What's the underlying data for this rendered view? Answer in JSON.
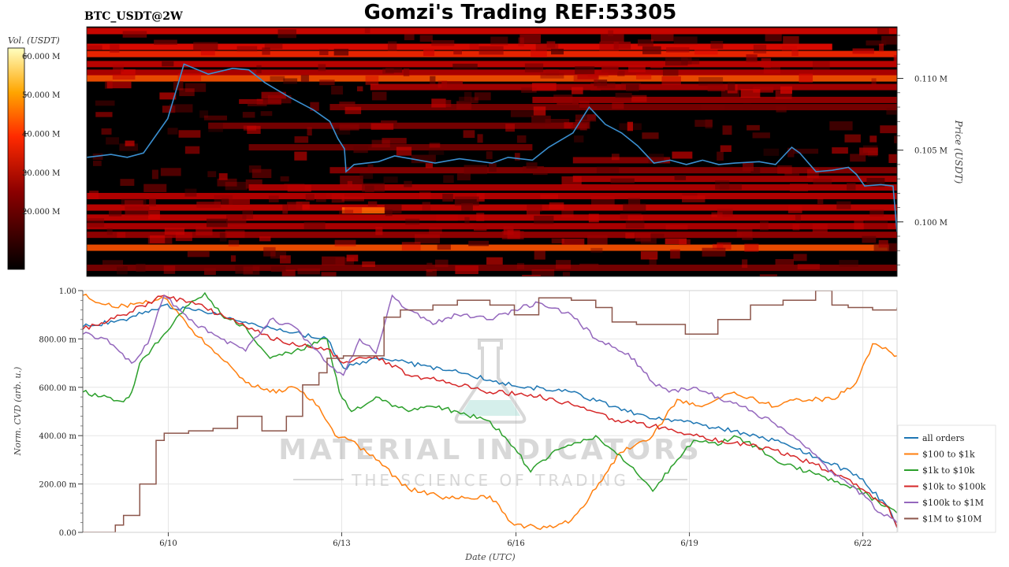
{
  "header": {
    "symbol_label": "BTC_USDT@2W",
    "title": "Gomzi's Trading REF:53305"
  },
  "watermark": {
    "line1": "MATERIAL INDICATORS",
    "line2": "THE SCIENCE OF TRADING"
  },
  "colorbar": {
    "label": "Vol. (USDT)",
    "ticks": [
      "60.000 M",
      "50.000 M",
      "40.000 M",
      "30.000 M",
      "20.000 M"
    ],
    "tick_values": [
      60,
      50,
      40,
      30,
      20
    ],
    "range": [
      5,
      62
    ]
  },
  "colors": {
    "price_line": "#3a8fd0",
    "heatmap_bg": "#000000",
    "all_orders": "#1f77b4",
    "usd100_1k": "#ff7f0e",
    "usd1k_10k": "#2ca02c",
    "usd10k_100k": "#d62728",
    "usd100k_1m": "#9467bd",
    "usd1m_10m": "#8c564b"
  },
  "chart_data": [
    {
      "type": "heatmap",
      "ylabel": "Price (USDT)",
      "ytick_labels": [
        "0.110 M",
        "0.105 M",
        "0.100 M"
      ],
      "ytick_values": [
        0.11,
        0.105,
        0.1
      ],
      "ylim": [
        0.0962,
        0.1136
      ],
      "x_range": [
        "6/8 05:00",
        "6/22 16:00"
      ],
      "walls": [
        {
          "price": 0.1133,
          "volume": 40,
          "start": 0.0,
          "end": 1.0
        },
        {
          "price": 0.1122,
          "volume": 45,
          "start": 0.0,
          "end": 0.92
        },
        {
          "price": 0.1117,
          "volume": 55,
          "start": 0.0,
          "end": 1.0
        },
        {
          "price": 0.111,
          "volume": 35,
          "start": 0.0,
          "end": 1.0
        },
        {
          "price": 0.1104,
          "volume": 30,
          "start": 0.0,
          "end": 1.0
        },
        {
          "price": 0.11,
          "volume": 60,
          "start": 0.0,
          "end": 1.0
        },
        {
          "price": 0.1094,
          "volume": 28,
          "start": 0.35,
          "end": 1.0
        },
        {
          "price": 0.1085,
          "volume": 25,
          "start": 0.55,
          "end": 1.0
        },
        {
          "price": 0.108,
          "volume": 20,
          "start": 0.3,
          "end": 1.0
        },
        {
          "price": 0.1067,
          "volume": 20,
          "start": 0.15,
          "end": 0.6
        },
        {
          "price": 0.1052,
          "volume": 18,
          "start": 0.2,
          "end": 0.55
        },
        {
          "price": 0.1043,
          "volume": 22,
          "start": 0.6,
          "end": 0.72
        },
        {
          "price": 0.1036,
          "volume": 22,
          "start": 0.3,
          "end": 1.0
        },
        {
          "price": 0.103,
          "volume": 28,
          "start": 0.6,
          "end": 1.0
        },
        {
          "price": 0.1024,
          "volume": 30,
          "start": 0.2,
          "end": 1.0
        },
        {
          "price": 0.1018,
          "volume": 32,
          "start": 0.0,
          "end": 1.0
        },
        {
          "price": 0.101,
          "volume": 35,
          "start": 0.0,
          "end": 1.0
        },
        {
          "price": 0.1008,
          "volume": 62,
          "start": 0.315,
          "end": 0.368
        },
        {
          "price": 0.1003,
          "volume": 34,
          "start": 0.0,
          "end": 1.0
        },
        {
          "price": 0.0997,
          "volume": 30,
          "start": 0.0,
          "end": 1.0
        },
        {
          "price": 0.0991,
          "volume": 25,
          "start": 0.0,
          "end": 1.0
        },
        {
          "price": 0.0982,
          "volume": 60,
          "start": 0.0,
          "end": 0.99
        },
        {
          "price": 0.0968,
          "volume": 20,
          "start": 0.0,
          "end": 1.0
        }
      ],
      "price_series": {
        "t": [
          0.0,
          0.03,
          0.05,
          0.07,
          0.085,
          0.1,
          0.12,
          0.15,
          0.18,
          0.2,
          0.22,
          0.25,
          0.28,
          0.3,
          0.31,
          0.318,
          0.32,
          0.33,
          0.36,
          0.38,
          0.4,
          0.43,
          0.46,
          0.5,
          0.52,
          0.55,
          0.57,
          0.6,
          0.62,
          0.64,
          0.66,
          0.68,
          0.7,
          0.72,
          0.74,
          0.76,
          0.78,
          0.8,
          0.83,
          0.85,
          0.87,
          0.88,
          0.9,
          0.92,
          0.94,
          0.95,
          0.96,
          0.98,
          0.995,
          1.0
        ],
        "v": [
          0.1045,
          0.1047,
          0.1045,
          0.1048,
          0.106,
          0.1072,
          0.111,
          0.1103,
          0.1107,
          0.1106,
          0.1097,
          0.1087,
          0.1078,
          0.107,
          0.1058,
          0.1051,
          0.1035,
          0.104,
          0.1042,
          0.1046,
          0.1044,
          0.1041,
          0.1044,
          0.1041,
          0.1045,
          0.1043,
          0.1052,
          0.1062,
          0.108,
          0.1068,
          0.1062,
          0.1053,
          0.1041,
          0.1043,
          0.104,
          0.1043,
          0.104,
          0.1041,
          0.1042,
          0.104,
          0.1052,
          0.1048,
          0.1035,
          0.1036,
          0.1038,
          0.1033,
          0.1025,
          0.1026,
          0.1025,
          0.0993
        ]
      }
    },
    {
      "type": "line",
      "xlabel": "Date (UTC)",
      "ylabel": "Norm. CVD (arb. u.)",
      "x_ticks": [
        "6/10",
        "6/13",
        "6/16",
        "6/19",
        "6/22"
      ],
      "x_tick_positions": [
        0.105,
        0.318,
        0.532,
        0.745,
        0.958
      ],
      "ylim": [
        0,
        1
      ],
      "y_ticks": [
        0,
        0.2,
        0.4,
        0.6,
        0.8,
        1.0
      ],
      "y_tick_labels": [
        "0.00",
        "200.00 m",
        "400.00 m",
        "600.00 m",
        "800.00 m",
        "1.00"
      ],
      "grid": true,
      "legend_position": "lower-right outside",
      "series": [
        {
          "name": "all orders",
          "color_key": "all_orders",
          "x": [
            0.0,
            0.05,
            0.1,
            0.15,
            0.2,
            0.25,
            0.3,
            0.32,
            0.36,
            0.4,
            0.45,
            0.5,
            0.55,
            0.6,
            0.65,
            0.7,
            0.75,
            0.8,
            0.85,
            0.9,
            0.95,
            0.99,
            1.0
          ],
          "y": [
            0.85,
            0.88,
            0.94,
            0.91,
            0.87,
            0.83,
            0.8,
            0.68,
            0.72,
            0.7,
            0.67,
            0.63,
            0.6,
            0.58,
            0.52,
            0.47,
            0.45,
            0.42,
            0.38,
            0.31,
            0.24,
            0.1,
            0.02
          ]
        },
        {
          "name": "$100 to $1k",
          "color_key": "usd100_1k",
          "x": [
            0.0,
            0.04,
            0.07,
            0.1,
            0.13,
            0.17,
            0.2,
            0.23,
            0.26,
            0.29,
            0.31,
            0.33,
            0.36,
            0.4,
            0.45,
            0.5,
            0.53,
            0.57,
            0.6,
            0.63,
            0.66,
            0.7,
            0.73,
            0.76,
            0.8,
            0.85,
            0.88,
            0.92,
            0.95,
            0.97,
            0.99,
            1.0
          ],
          "y": [
            0.98,
            0.93,
            0.95,
            0.97,
            0.85,
            0.72,
            0.62,
            0.58,
            0.6,
            0.52,
            0.4,
            0.38,
            0.3,
            0.18,
            0.14,
            0.15,
            0.03,
            0.02,
            0.05,
            0.18,
            0.33,
            0.4,
            0.55,
            0.52,
            0.58,
            0.52,
            0.55,
            0.55,
            0.62,
            0.78,
            0.75,
            0.73
          ]
        },
        {
          "name": "$1k to $10k",
          "color_key": "usd1k_10k",
          "x": [
            0.0,
            0.03,
            0.05,
            0.06,
            0.07,
            0.1,
            0.13,
            0.15,
            0.17,
            0.2,
            0.23,
            0.26,
            0.3,
            0.315,
            0.33,
            0.36,
            0.4,
            0.43,
            0.46,
            0.5,
            0.53,
            0.55,
            0.58,
            0.6,
            0.63,
            0.66,
            0.7,
            0.73,
            0.75,
            0.78,
            0.8,
            0.83,
            0.85,
            0.9,
            0.95,
            1.0
          ],
          "y": [
            0.58,
            0.56,
            0.54,
            0.58,
            0.7,
            0.82,
            0.94,
            0.99,
            0.9,
            0.85,
            0.72,
            0.75,
            0.8,
            0.58,
            0.5,
            0.56,
            0.5,
            0.52,
            0.5,
            0.46,
            0.35,
            0.25,
            0.34,
            0.36,
            0.4,
            0.32,
            0.17,
            0.3,
            0.38,
            0.36,
            0.4,
            0.35,
            0.3,
            0.24,
            0.18,
            0.08
          ]
        },
        {
          "name": "$10k to $100k",
          "color_key": "usd10k_100k",
          "x": [
            0.0,
            0.05,
            0.1,
            0.15,
            0.2,
            0.25,
            0.3,
            0.32,
            0.36,
            0.4,
            0.45,
            0.5,
            0.55,
            0.6,
            0.65,
            0.7,
            0.75,
            0.8,
            0.85,
            0.9,
            0.95,
            0.99,
            1.0
          ],
          "y": [
            0.84,
            0.9,
            0.98,
            0.93,
            0.85,
            0.78,
            0.76,
            0.7,
            0.73,
            0.65,
            0.62,
            0.58,
            0.57,
            0.53,
            0.47,
            0.44,
            0.4,
            0.37,
            0.34,
            0.28,
            0.2,
            0.1,
            0.02
          ]
        },
        {
          "name": "$100k to $1M",
          "color_key": "usd100k_1m",
          "x": [
            0.0,
            0.03,
            0.06,
            0.08,
            0.1,
            0.13,
            0.17,
            0.2,
            0.23,
            0.26,
            0.3,
            0.32,
            0.34,
            0.36,
            0.38,
            0.4,
            0.43,
            0.46,
            0.5,
            0.53,
            0.56,
            0.6,
            0.63,
            0.67,
            0.7,
            0.72,
            0.75,
            0.78,
            0.81,
            0.85,
            0.88,
            0.92,
            0.95,
            0.98,
            1.0
          ],
          "y": [
            0.82,
            0.8,
            0.7,
            0.78,
            0.98,
            0.88,
            0.8,
            0.75,
            0.88,
            0.85,
            0.7,
            0.65,
            0.8,
            0.74,
            0.98,
            0.92,
            0.86,
            0.9,
            0.88,
            0.92,
            0.95,
            0.9,
            0.8,
            0.74,
            0.62,
            0.58,
            0.6,
            0.56,
            0.52,
            0.45,
            0.38,
            0.25,
            0.18,
            0.08,
            0.04
          ]
        },
        {
          "name": "$1M to $10M",
          "color_key": "usd1m_10m",
          "x": [
            0.0,
            0.04,
            0.05,
            0.07,
            0.09,
            0.1,
            0.13,
            0.16,
            0.19,
            0.22,
            0.25,
            0.27,
            0.29,
            0.3,
            0.32,
            0.35,
            0.37,
            0.39,
            0.41,
            0.43,
            0.46,
            0.5,
            0.53,
            0.56,
            0.6,
            0.63,
            0.65,
            0.68,
            0.7,
            0.74,
            0.78,
            0.82,
            0.86,
            0.9,
            0.92,
            0.94,
            0.97,
            1.0
          ],
          "y": [
            0.0,
            0.03,
            0.07,
            0.2,
            0.38,
            0.41,
            0.42,
            0.43,
            0.48,
            0.42,
            0.48,
            0.61,
            0.66,
            0.72,
            0.73,
            0.73,
            0.89,
            0.92,
            0.92,
            0.94,
            0.96,
            0.94,
            0.9,
            0.97,
            0.96,
            0.93,
            0.87,
            0.86,
            0.86,
            0.82,
            0.88,
            0.94,
            0.96,
            1.0,
            0.94,
            0.93,
            0.92,
            0.93
          ]
        }
      ]
    }
  ]
}
